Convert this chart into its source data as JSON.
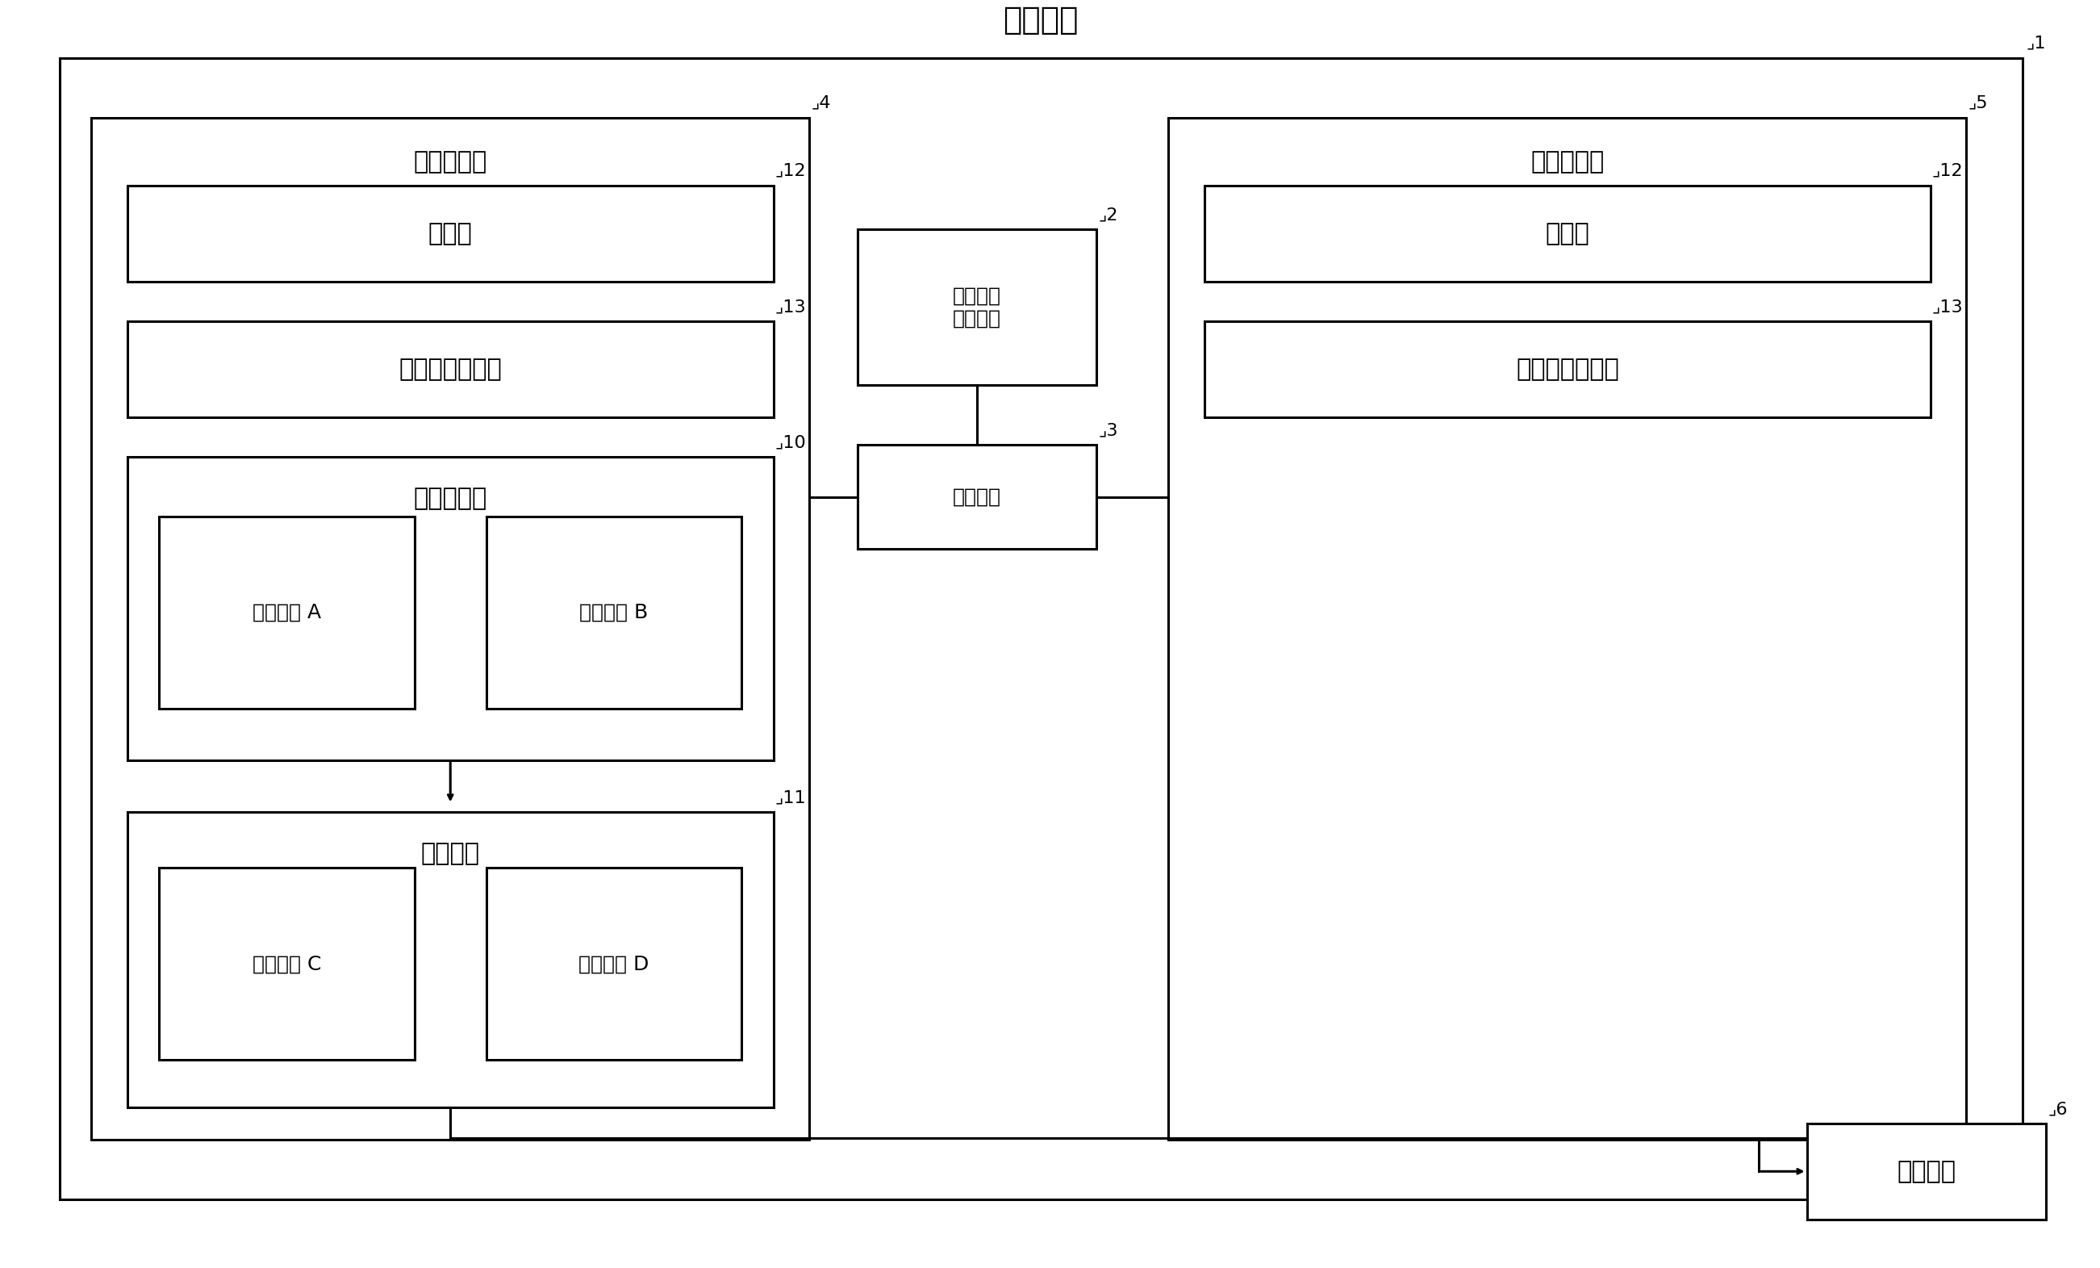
{
  "title": "数控系统",
  "label_1": "第１运算部",
  "label_2": "第２运算部",
  "label_task_change": "任务分配\n变更装置",
  "label_comm": "通信单元",
  "label_nc_proc": "数控处理部",
  "label_axis_ctrl": "轴控制部",
  "label_measure1": "测定部",
  "label_measure2": "测定部",
  "label_proc_time1": "处理时间推定部",
  "label_proc_time2": "处理时间推定部",
  "label_sw_A": "软件任务 A",
  "label_sw_B": "软件任务 B",
  "label_sw_C": "软件任务 C",
  "label_sw_D": "软件任务 D",
  "label_ctrl_obj": "控制对象",
  "ref_1": "1",
  "ref_2": "2",
  "ref_3": "3",
  "ref_4": "4",
  "ref_5": "5",
  "ref_6": "6",
  "ref_10": "10",
  "ref_11": "11",
  "ref_12": "12",
  "ref_13": "13",
  "bg_color": "#ffffff",
  "box_color": "#000000",
  "text_color": "#000000",
  "fontsize_title": 28,
  "fontsize_label": 22,
  "fontsize_small": 18,
  "fontsize_ref": 16
}
